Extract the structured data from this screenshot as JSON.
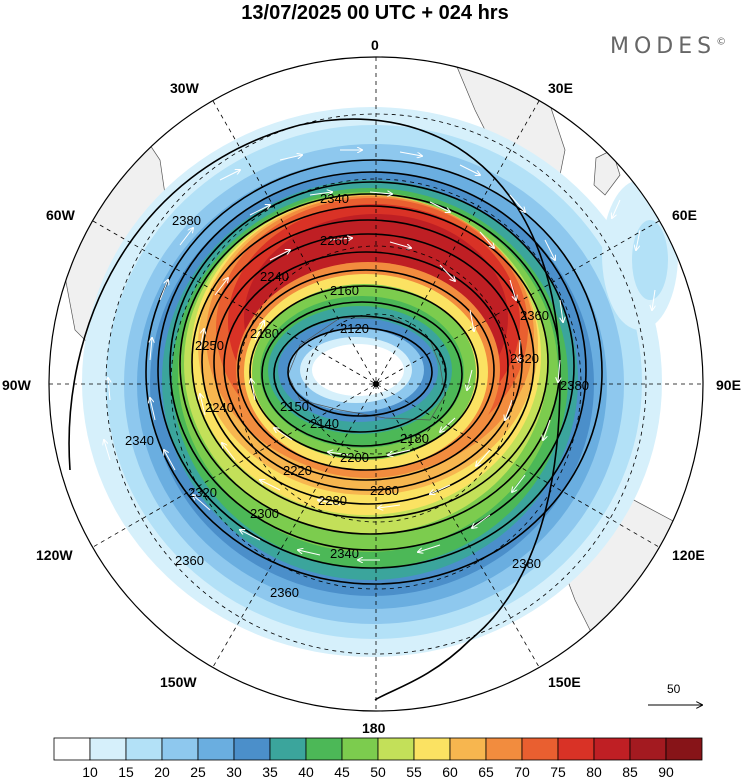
{
  "title": "13/07/2025  00 UTC  + 024 hrs",
  "brand": "MODES",
  "brand_mark": "©",
  "longitude_labels": {
    "top": "0",
    "bottom": "180",
    "left": "90W",
    "right": "90E",
    "upper_left_1": "30W",
    "upper_left_2": "60W",
    "upper_right_1": "30E",
    "upper_right_2": "60E",
    "lower_left_1": "120W",
    "lower_left_2": "150W",
    "lower_right_1": "120E",
    "lower_right_2": "150E"
  },
  "contour_labels": [
    "2120",
    "2140",
    "2150",
    "2160",
    "2180",
    "2180",
    "2200",
    "2220",
    "2240",
    "2240",
    "2250",
    "2260",
    "2260",
    "2280",
    "2300",
    "2320",
    "2320",
    "2340",
    "2340",
    "2340",
    "2360",
    "2360",
    "2360",
    "2380",
    "2380",
    "2380"
  ],
  "wind_reference": "50",
  "colorbar": {
    "colors": [
      "#ffffff",
      "#d6f0fb",
      "#b3e1f7",
      "#8ec8ee",
      "#6aaee0",
      "#4b8fca",
      "#3ba59c",
      "#4cb857",
      "#7ccc4e",
      "#c3e059",
      "#fbe262",
      "#f7b64f",
      "#f28c3e",
      "#e95f30",
      "#d93226",
      "#bf1f24",
      "#a31a20",
      "#871418"
    ],
    "labels": [
      "10",
      "15",
      "20",
      "25",
      "30",
      "35",
      "40",
      "45",
      "50",
      "55",
      "60",
      "65",
      "70",
      "75",
      "80",
      "85",
      "90"
    ]
  }
}
